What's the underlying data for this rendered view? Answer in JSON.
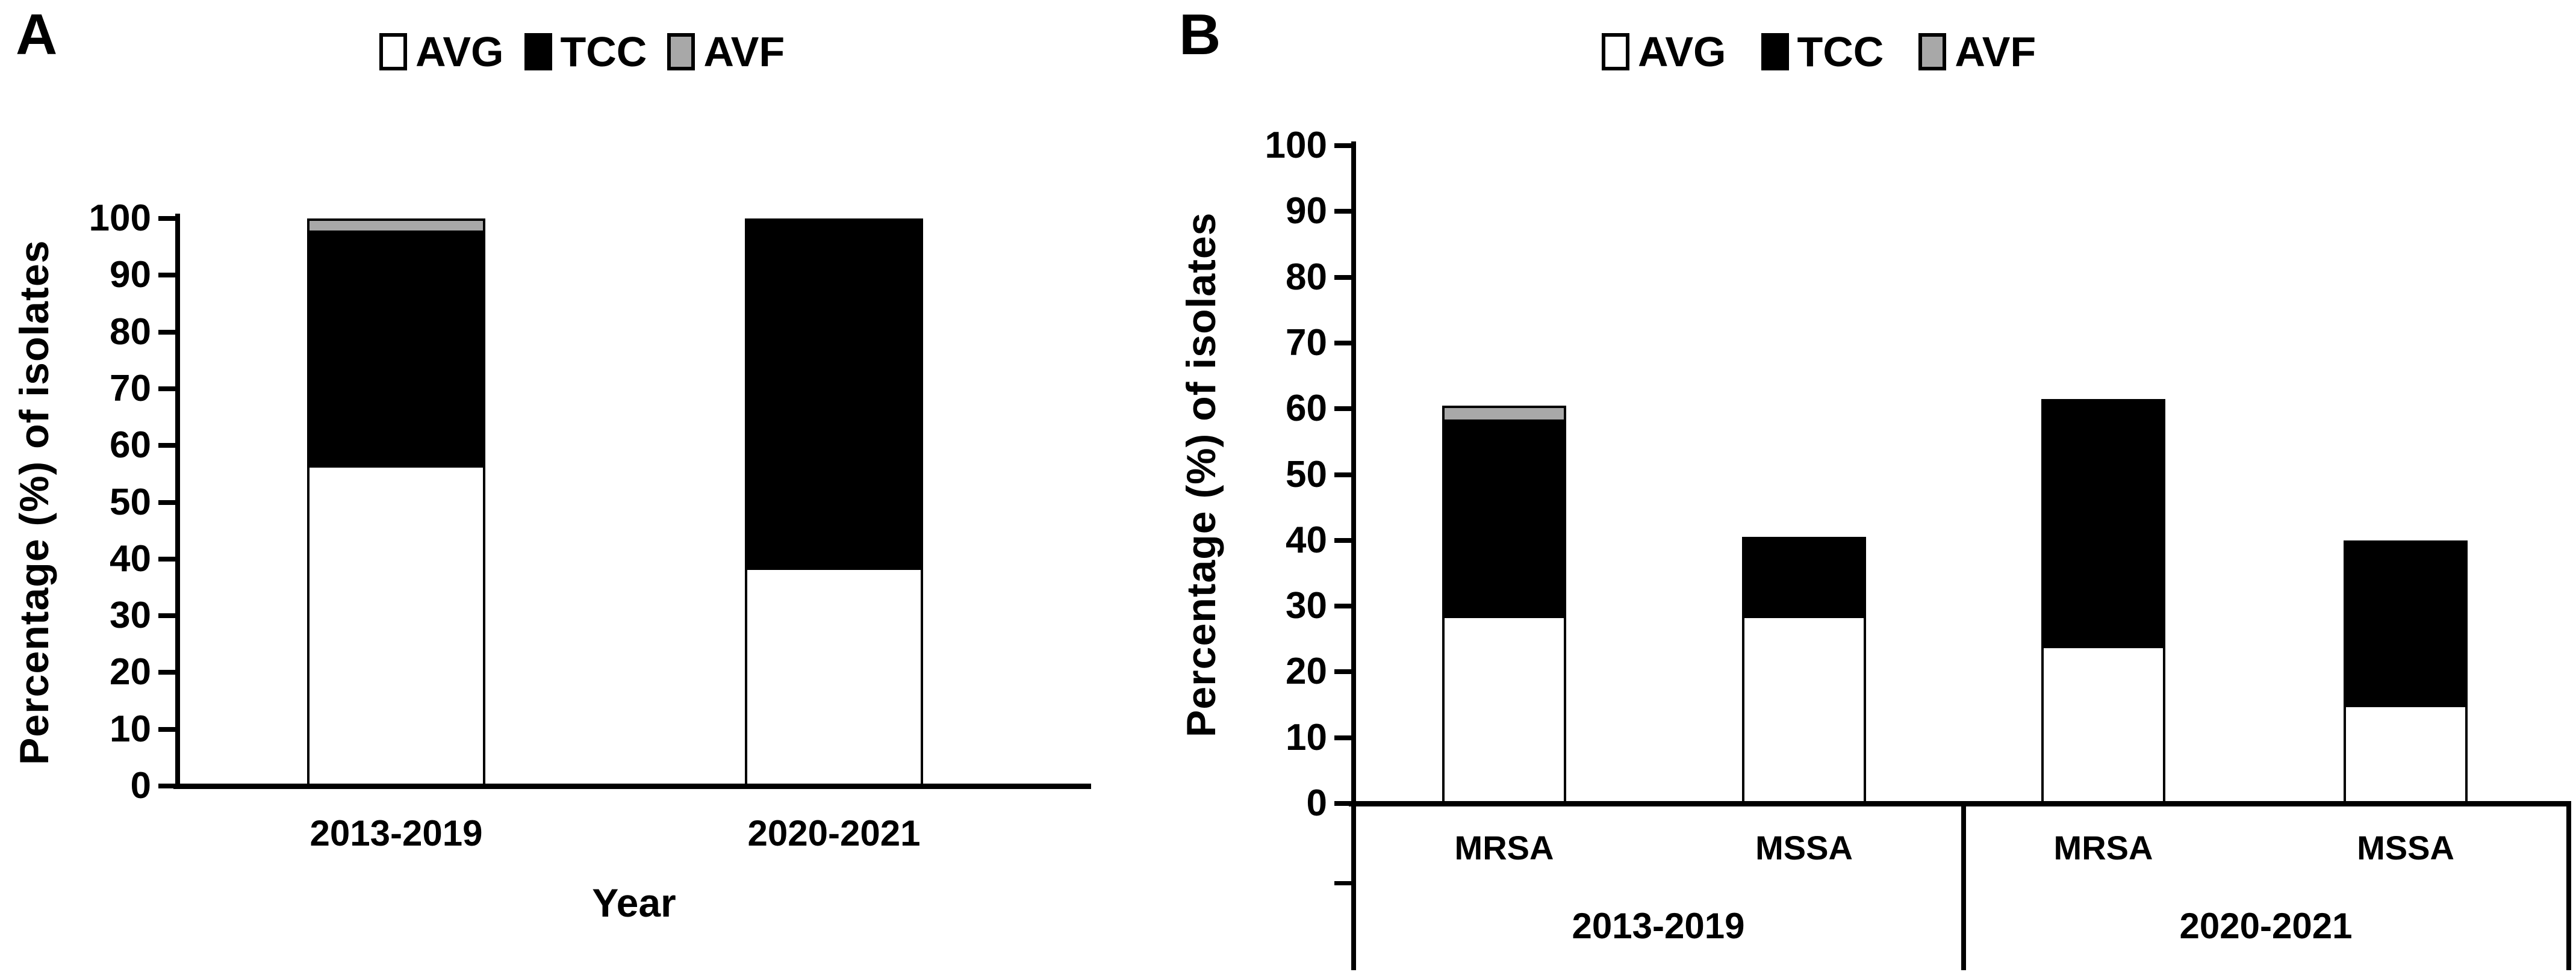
{
  "figure": {
    "background": "#ffffff",
    "ink_color": "#000000"
  },
  "colors": {
    "avg": "#ffffff",
    "tcc": "#000000",
    "avf": "#a8a8a8"
  },
  "legend": {
    "items": [
      {
        "key": "avg",
        "label": "AVG"
      },
      {
        "key": "tcc",
        "label": "TCC"
      },
      {
        "key": "avf",
        "label": "AVF"
      }
    ]
  },
  "chart_data": [
    {
      "type": "bar",
      "stacked": true,
      "panel_label": "A",
      "categories": [
        "2013-2019",
        "2020-2021"
      ],
      "series": [
        {
          "name": "AVG",
          "color_key": "avg",
          "values": [
            56.5,
            38.5
          ]
        },
        {
          "name": "TCC",
          "color_key": "tcc",
          "values": [
            41.0,
            61.5
          ]
        },
        {
          "name": "AVF",
          "color_key": "avf",
          "values": [
            2.5,
            0
          ]
        }
      ],
      "totals": [
        100,
        100
      ],
      "xlabel": "Year",
      "ylabel": "Percentage (%)  of isolates",
      "ylim": [
        0,
        100
      ],
      "ytick_step": 10,
      "legend_position": "top-center",
      "grid": false
    },
    {
      "type": "bar",
      "stacked": true,
      "panel_label": "B",
      "categories": [
        "MRSA",
        "MSSA",
        "MRSA",
        "MSSA"
      ],
      "group_axis": [
        {
          "label": "2013-2019",
          "categories": [
            "MRSA",
            "MSSA"
          ]
        },
        {
          "label": "2020-2021",
          "categories": [
            "MRSA",
            "MSSA"
          ]
        }
      ],
      "series": [
        {
          "name": "AVG",
          "color_key": "avg",
          "values": [
            28.5,
            28.5,
            24.0,
            15.0
          ]
        },
        {
          "name": "TCC",
          "color_key": "tcc",
          "values": [
            29.5,
            12.0,
            37.5,
            25.0
          ]
        },
        {
          "name": "AVF",
          "color_key": "avf",
          "values": [
            2.5,
            0,
            0,
            0
          ]
        }
      ],
      "totals": [
        60.5,
        40.5,
        61.5,
        40.0
      ],
      "xlabel": "",
      "ylabel": "Percentage (%) of isolates",
      "ylim": [
        0,
        100
      ],
      "ytick_step": 10,
      "legend_position": "top-center",
      "grid": false
    }
  ]
}
